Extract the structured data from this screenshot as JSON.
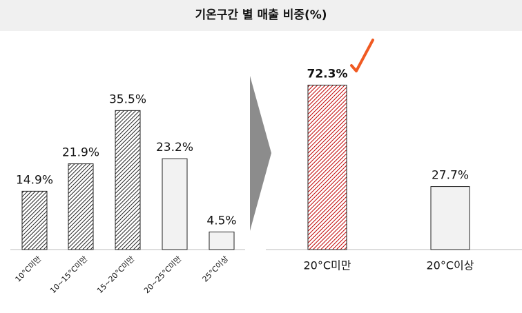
{
  "title": "기온구간 별 매출 비중(%)",
  "chart_data": [
    {
      "type": "bar",
      "categories": [
        "10°C미만",
        "10~15°C미만",
        "15~20°C미만",
        "20~25°C미만",
        "25°C이상"
      ],
      "values": [
        14.9,
        21.9,
        35.5,
        23.2,
        4.5
      ],
      "value_labels": [
        "14.9%",
        "21.9%",
        "35.5%",
        "23.2%",
        "4.5%"
      ],
      "colors": [
        "#222222",
        "#222222",
        "#222222",
        "#f2f2f2",
        "#f2f2f2"
      ],
      "hatch": [
        true,
        true,
        true,
        false,
        false
      ],
      "bold_labels": [
        false,
        false,
        false,
        false,
        false
      ]
    },
    {
      "type": "bar",
      "categories": [
        "20°C미만",
        "20°C이상"
      ],
      "values": [
        72.3,
        27.7
      ],
      "value_labels": [
        "72.3%",
        "27.7%"
      ],
      "colors": [
        "#c00000",
        "#f2f2f2"
      ],
      "hatch": [
        true,
        false
      ],
      "bold_labels": [
        true,
        false
      ]
    }
  ]
}
